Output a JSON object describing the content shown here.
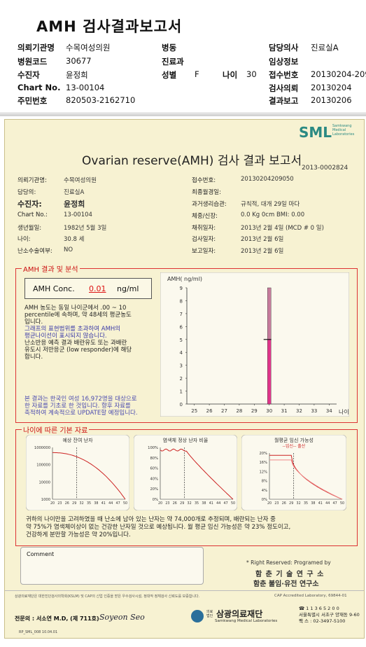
{
  "header": {
    "title": "AMH 검사결과보고서",
    "rows": [
      [
        {
          "k": "의뢰기관명",
          "v": "수목여성의원"
        },
        {
          "k": "병동",
          "v": ""
        },
        {
          "k": "담당의사",
          "v": "진료실A"
        }
      ],
      [
        {
          "k": "병원코드",
          "v": "30677"
        },
        {
          "k": "진료과",
          "v": ""
        },
        {
          "k": "임상정보",
          "v": ""
        }
      ],
      [
        {
          "k": "수진자",
          "v": "윤정희"
        },
        {
          "k": "성별",
          "v": "F"
        },
        {
          "k": "접수번호",
          "v": "20130204-209"
        }
      ],
      [
        {
          "k": "Chart No.",
          "v": "13-00104"
        },
        {
          "k": "",
          "v": ""
        },
        {
          "k": "검사의뢰",
          "v": "20130204"
        }
      ],
      [
        {
          "k": "주민번호",
          "v": "820503-2162710"
        },
        {
          "k": "",
          "v": ""
        },
        {
          "k": "결과보고",
          "v": "20130206"
        }
      ]
    ],
    "age_label": "나이",
    "age_value": "30"
  },
  "form": {
    "logo": "SML",
    "logo_sub1": "Samkwang",
    "logo_sub2": "Medical",
    "logo_sub3": "Laboratories",
    "title": "Ovarian reserve(AMH) 검사 결과 보고서",
    "doc_no": "2013-0002824",
    "left": [
      {
        "k": "의뢰기관명:",
        "v": "수목여성의원"
      },
      {
        "k": "담당의:",
        "v": "진료실A"
      },
      {
        "k": "수진자:",
        "v": "윤정희"
      },
      {
        "k": "Chart No.:",
        "v": "13-00104"
      },
      {
        "k": "생년월일:",
        "v": "1982년 5월 3일"
      },
      {
        "k": "나이:",
        "v": "30.8 세"
      },
      {
        "k": "난소수술여부:",
        "v": "NO"
      }
    ],
    "right": [
      {
        "k": "접수번호:",
        "v": "20130204209050"
      },
      {
        "k": "최종월경일:",
        "v": ""
      },
      {
        "k": "과거생리습관:",
        "v": "규칙적, 대개   29일 마다"
      },
      {
        "k": "체중/신장:",
        "v": "0.0 Kg      0cm    BMI:   0.00"
      },
      {
        "k": "채취일자:",
        "v": "2013년 2월 4일     (MCD # 0 일)"
      },
      {
        "k": "검사일자:",
        "v": "2013년 2월 6일"
      },
      {
        "k": "보고일자:",
        "v": "2013년 2월 6일"
      }
    ],
    "result_section_title": "AMH 결과 및 분석",
    "amh_label": "AMH Conc.",
    "amh_value": "0.01",
    "amh_unit": "ng/ml",
    "analysis_1a": "AMH 농도는 동일 나이군에서  .00 ~ 10",
    "analysis_1b": "percentile에 속하며, 약  48세의 평균농도",
    "analysis_1c": "입니다.",
    "analysis_2a": "그래프의 표현범위를 초과하여 AMH의",
    "analysis_2b": "평균나이선이 표시되지 않습니다.",
    "analysis_3a": "난소반응 예측 결과 배란유도 또는 과배란",
    "analysis_3b": "유도시 저반응군 (low responder)에 해당",
    "analysis_3c": "합니다.",
    "analysis_4a": "본 결과는 한국인 여성 16,972명을 대상으로",
    "analysis_4b": "한 자료를 기초로 한 것입니다. 향후 자료를",
    "analysis_4c": "축적하여 계속적으로 UPDATE할 예정입니다.",
    "graph_section_title": "나이에 따른 기본 자료",
    "summary_1": "귀하의 나이만을 고려하였을 때 난소에 남아 있는 난자는 약     74,000개로 추정되며, 배란되는 난자 중",
    "summary_2": "약  75%가 염색체이상이 없는 건강한 난자일 것으로 예상됩니다. 월 평균 임신 가능성은 약  23% 정도이고,",
    "summary_3": "건강하게 분만할 가능성은 약  20%입니다.",
    "comment_label": "Comment",
    "rights": "* Right Reserved: Programed by",
    "org1": "함 춘 기 술 연 구 소",
    "org2": "함춘 불임·유전 연구소",
    "fine_left": "상광의료재단은 대한진단검사의학회(KSLM) 및 CAP의 신업 인증을 받은 우수검사시설, 정대작 정체검사 신뢰도를 보증합니다.",
    "fine_right": "CAP  Accredited  Laboratory,  69844-01",
    "specialist": "전문의 : 서소연 M.D, (제 711호)",
    "signature": "Soyeon Seo",
    "foundation": "삼광의료재단",
    "foundation_en": "Samkwang Medical Laboratories",
    "foundation_tag": "의료법인",
    "phone1": "☎ 1 1 3 6 5 2 0 0",
    "addr": "서울특별시 서초구 양재동 9-60",
    "phone2": "팩 스 : 02-3497-5100",
    "form_code": "RP_SML_008 10.04.01"
  },
  "chart_data": [
    {
      "type": "bar",
      "title": "",
      "ylabel": "AMH( ng/ml)",
      "xlabel": "나이",
      "x": [
        25,
        26,
        27,
        28,
        29,
        30,
        31,
        32,
        33,
        34
      ],
      "ylim": [
        0,
        9
      ],
      "yticks": [
        0,
        1,
        2,
        3,
        4,
        5,
        6,
        7,
        8,
        9
      ],
      "highlight_x": 30,
      "ranges": [
        {
          "x": 30,
          "low": 0,
          "high": 5.0,
          "color": "#e0358a"
        },
        {
          "x": 30,
          "low": 5.0,
          "high": 9.0,
          "color": "#c77c9c"
        }
      ],
      "median": 5.0
    },
    {
      "type": "line",
      "title": "예상 잔여 난자",
      "y_scale": "log",
      "yticks": [
        "1000000",
        "100000",
        "10000",
        "1000"
      ],
      "x": [
        20,
        23,
        26,
        29,
        32,
        35,
        38,
        41,
        44,
        47,
        50
      ],
      "xtick_labels": [
        "20",
        "23",
        "26",
        "29",
        "32",
        "35",
        "38",
        "41",
        "44",
        "47",
        "50"
      ],
      "marker_x": 30
    },
    {
      "type": "line",
      "title": "염색체 정상 난자 비율",
      "yticks": [
        "100%",
        "80%",
        "60%",
        "40%",
        "20%",
        "0%"
      ],
      "x": [
        20,
        23,
        26,
        29,
        32,
        35,
        38,
        41,
        44,
        47,
        50
      ],
      "marker_x": 30
    },
    {
      "type": "line",
      "title": "월평균 임신 가능성",
      "legend": [
        "임신",
        "출산"
      ],
      "yticks": [
        "20%",
        "16%",
        "12%",
        "8%",
        "4%",
        "0%"
      ],
      "x": [
        20,
        23,
        26,
        29,
        32,
        35,
        38,
        41,
        44,
        47,
        50
      ],
      "marker_x": 30
    }
  ]
}
